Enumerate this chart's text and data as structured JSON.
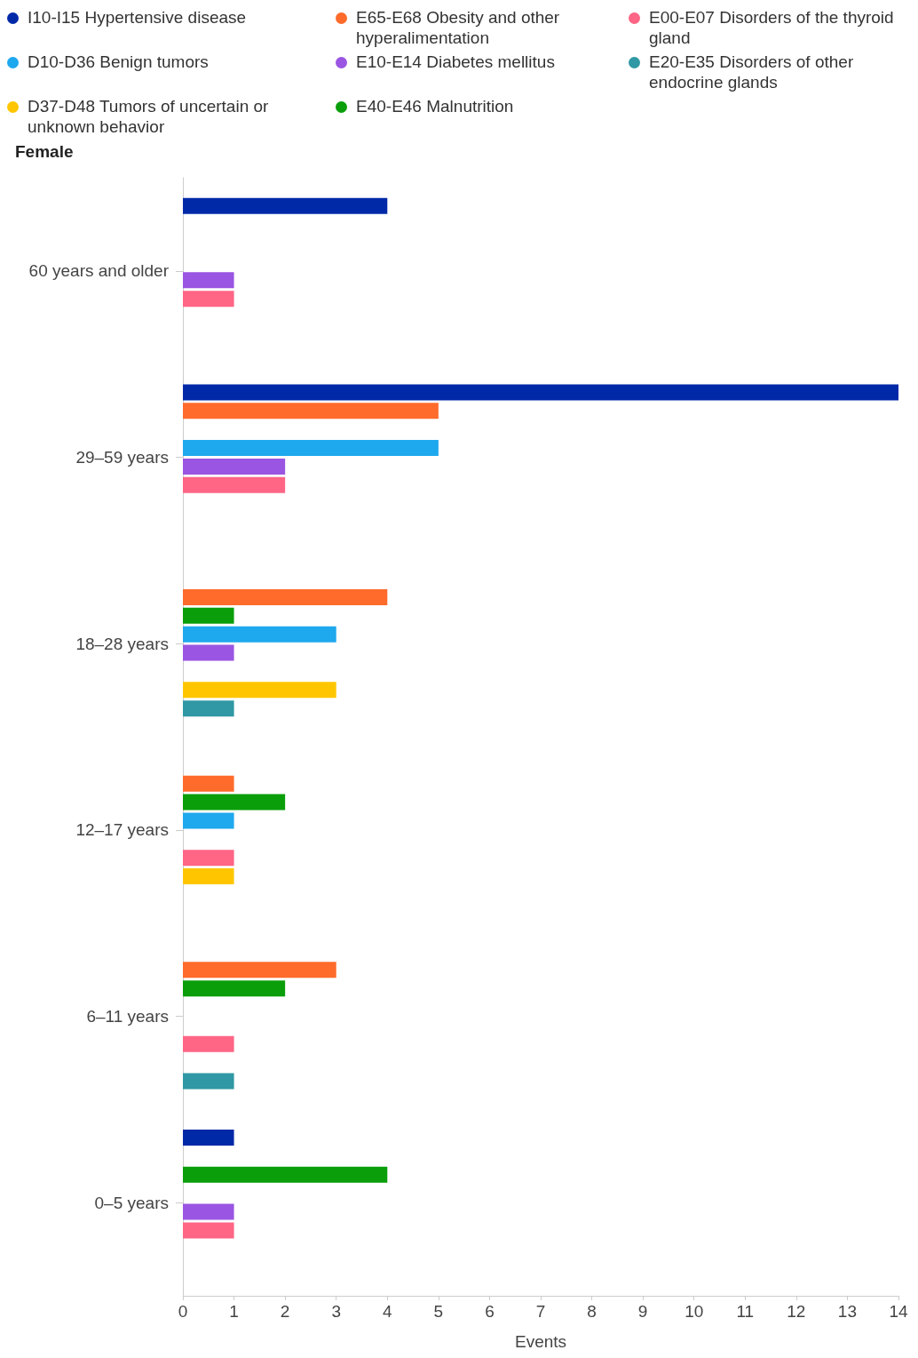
{
  "chart_data": {
    "type": "bar",
    "orientation": "horizontal",
    "title": "Female",
    "xlabel": "Events",
    "categories": [
      "60 years and older",
      "29–59 years",
      "18–28 years",
      "12–17 years",
      "6–11 years",
      "0–5 years"
    ],
    "series": [
      {
        "name": "I10-I15 Hypertensive disease",
        "color": "#0029a8",
        "values": [
          4,
          14,
          null,
          null,
          null,
          1
        ]
      },
      {
        "name": "E65-E68 Obesity and other hyperalimentation",
        "color": "#ff6b2b",
        "values": [
          null,
          5,
          4,
          1,
          3,
          null
        ]
      },
      {
        "name": "E40-E46 Malnutrition",
        "color": "#0a9e0a",
        "values": [
          null,
          null,
          1,
          2,
          2,
          4
        ]
      },
      {
        "name": "D10-D36 Benign tumors",
        "color": "#1ea8ee",
        "values": [
          null,
          5,
          3,
          1,
          null,
          null
        ]
      },
      {
        "name": "E10-E14 Diabetes mellitus",
        "color": "#9a55e2",
        "values": [
          1,
          2,
          1,
          null,
          null,
          1
        ]
      },
      {
        "name": "E00-E07 Disorders of the thyroid gland",
        "color": "#ff6585",
        "values": [
          1,
          2,
          null,
          1,
          1,
          1
        ]
      },
      {
        "name": "D37-D48 Tumors of uncertain or unknown behavior",
        "color": "#ffc600",
        "values": [
          null,
          null,
          3,
          1,
          null,
          null
        ]
      },
      {
        "name": "E20-E35 Disorders of other endocrine glands",
        "color": "#2f98a4",
        "values": [
          null,
          null,
          1,
          null,
          1,
          null
        ]
      }
    ],
    "xlim": [
      0,
      14
    ],
    "xticks": [
      0,
      1,
      2,
      3,
      4,
      5,
      6,
      7,
      8,
      9,
      10,
      11,
      12,
      13,
      14
    ],
    "grid": false,
    "legend": "top"
  }
}
